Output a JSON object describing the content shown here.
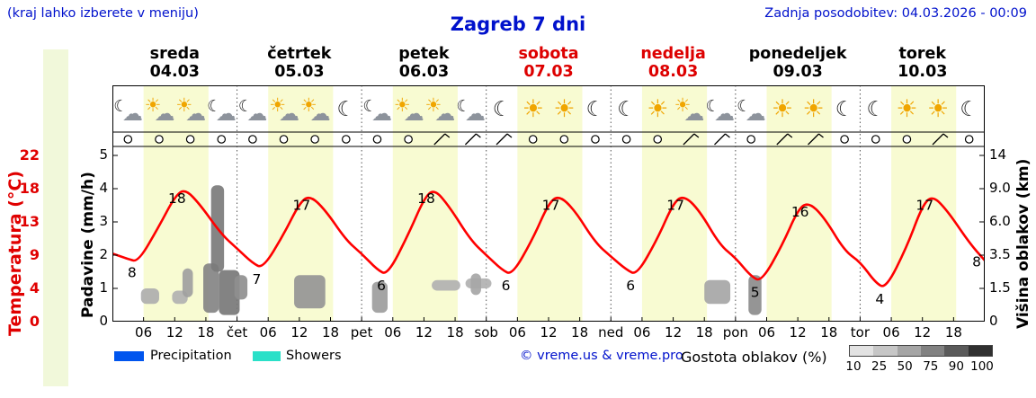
{
  "header": {
    "hint": "(kraj lahko izberete v meniju)",
    "title": "Zagreb 7 dni",
    "last_update": "Zadnja posodobitev: 04.03.2026 - 00:09"
  },
  "theme": {
    "day_band": "#f8fbd2",
    "temp_color": "#ff0000",
    "sun": "#f0a500",
    "moon": "#222222",
    "cloud": "#8d939c",
    "accent_blue": "#0011cc"
  },
  "axes": {
    "temp_label": "Temperatura (°C)",
    "temp_ticks": [
      "22",
      "18",
      "13",
      "9",
      "4",
      "0"
    ],
    "precip_label": "Padavine (mm/h)",
    "precip_ticks": [
      "5",
      "4",
      "3",
      "2",
      "1",
      "0"
    ],
    "cloud_label": "Višina oblakov (km)",
    "cloud_ticks": [
      "14",
      "9.0",
      "6.0",
      "3.5",
      "1.5",
      "0"
    ],
    "hour_ticks": [
      "06",
      "12",
      "18"
    ],
    "day_abbrs": [
      "čet",
      "pet",
      "sob",
      "ned",
      "pon",
      "tor"
    ]
  },
  "days": [
    {
      "name": "sreda",
      "date": "04.03",
      "color": "#000000",
      "icons": [
        "moon-cloud",
        "sun-cloud",
        "sun-cloud",
        "moon-cloud"
      ]
    },
    {
      "name": "četrtek",
      "date": "05.03",
      "color": "#000000",
      "icons": [
        "moon-cloud",
        "sun-cloud",
        "sun-cloud",
        "moon"
      ]
    },
    {
      "name": "petek",
      "date": "06.03",
      "color": "#000000",
      "icons": [
        "moon-cloud",
        "sun-cloud",
        "sun-cloud",
        "moon-cloud"
      ]
    },
    {
      "name": "sobota",
      "date": "07.03",
      "color": "#dd0000",
      "icons": [
        "moon",
        "sun",
        "sun",
        "moon"
      ]
    },
    {
      "name": "nedelja",
      "date": "08.03",
      "color": "#dd0000",
      "icons": [
        "moon",
        "sun",
        "sun-cloud",
        "moon-cloud"
      ]
    },
    {
      "name": "ponedeljek",
      "date": "09.03",
      "color": "#000000",
      "icons": [
        "moon-cloud",
        "sun",
        "sun",
        "moon"
      ]
    },
    {
      "name": "torek",
      "date": "10.03",
      "color": "#000000",
      "icons": [
        "moon",
        "sun",
        "sun",
        "moon"
      ]
    }
  ],
  "legend": {
    "precipitation": {
      "label": "Precipitation",
      "color": "#0055ee"
    },
    "showers": {
      "label": "Showers",
      "color": "#2ae0c8"
    },
    "copyright": "© vreme.us & vreme.pro",
    "cloud_density_label": "Gostota oblakov (%)",
    "cloud_density_ticks": [
      "10",
      "25",
      "50",
      "75",
      "90",
      "100"
    ],
    "density_colors": [
      "#e2e2e2",
      "#c6c6c6",
      "#a5a5a5",
      "#818181",
      "#5a5a5a",
      "#303030"
    ]
  },
  "chart_data": {
    "type": "line",
    "title": "Zagreb 7 dni",
    "x_unit": "hour",
    "x_range": [
      0,
      168
    ],
    "temp_axis_values": [
      0,
      4,
      9,
      13,
      18,
      22
    ],
    "cloud_axis_values": [
      0,
      1.5,
      3.5,
      6,
      9,
      14
    ],
    "temperature": {
      "unit": "°C",
      "hours": [
        0,
        3,
        5,
        9,
        12,
        14,
        17,
        21,
        24,
        27,
        29,
        33,
        36,
        38,
        41,
        45,
        48,
        51,
        53,
        57,
        60,
        62,
        65,
        69,
        72,
        75,
        77,
        81,
        84,
        86,
        89,
        93,
        96,
        99,
        101,
        105,
        108,
        110,
        113,
        117,
        120,
        123,
        125,
        129,
        132,
        134,
        137,
        141,
        144,
        147,
        149,
        153,
        156,
        158,
        161,
        165,
        168
      ],
      "values": [
        9.2,
        8.4,
        8.0,
        12.5,
        16.8,
        18,
        15.5,
        11.5,
        9.8,
        7.8,
        7.0,
        11.5,
        15.8,
        17,
        14.8,
        10.8,
        9.2,
        6.8,
        6.0,
        11.5,
        16.5,
        18,
        15.2,
        10.8,
        9.0,
        6.8,
        6.0,
        11.0,
        15.8,
        17,
        14.8,
        10.5,
        8.8,
        6.8,
        6.0,
        11.0,
        15.8,
        17,
        14.8,
        10.2,
        8.6,
        5.8,
        5.0,
        10.2,
        14.8,
        16,
        13.8,
        9.5,
        8.0,
        4.8,
        4.0,
        10.0,
        15.5,
        17,
        14.5,
        10.5,
        8.2
      ]
    },
    "daily_max_c": [
      18,
      17,
      18,
      17,
      17,
      16,
      17
    ],
    "daily_min_c": [
      8,
      7,
      6,
      6,
      6,
      5,
      4
    ],
    "temp_labels": [
      {
        "hour": 5,
        "value": 8,
        "side": "min"
      },
      {
        "hour": 14,
        "value": 18,
        "side": "max"
      },
      {
        "hour": 29,
        "value": 7,
        "side": "min"
      },
      {
        "hour": 38,
        "value": 17,
        "side": "max"
      },
      {
        "hour": 53,
        "value": 6,
        "side": "min"
      },
      {
        "hour": 62,
        "value": 18,
        "side": "max"
      },
      {
        "hour": 77,
        "value": 6,
        "side": "min"
      },
      {
        "hour": 86,
        "value": 17,
        "side": "max"
      },
      {
        "hour": 101,
        "value": 6,
        "side": "min"
      },
      {
        "hour": 110,
        "value": 17,
        "side": "max"
      },
      {
        "hour": 125,
        "value": 5,
        "side": "min"
      },
      {
        "hour": 134,
        "value": 16,
        "side": "max"
      },
      {
        "hour": 149,
        "value": 4,
        "side": "min"
      },
      {
        "hour": 158,
        "value": 17,
        "side": "max"
      },
      {
        "hour": 168,
        "value": 8,
        "side": "end"
      }
    ],
    "clouds": [
      {
        "from_hour": 5.5,
        "to_hour": 9,
        "km_low": 0.8,
        "km_high": 1.5,
        "density": 30
      },
      {
        "from_hour": 11.5,
        "to_hour": 14.5,
        "km_low": 0.8,
        "km_high": 1.4,
        "density": 28
      },
      {
        "from_hour": 13.5,
        "to_hour": 15.5,
        "km_low": 1.1,
        "km_high": 2.7,
        "density": 38
      },
      {
        "from_hour": 17.5,
        "to_hour": 20.5,
        "km_low": 0.4,
        "km_high": 3.0,
        "density": 55
      },
      {
        "from_hour": 19,
        "to_hour": 21.5,
        "km_low": 2.5,
        "km_high": 9.5,
        "density": 60
      },
      {
        "from_hour": 20.5,
        "to_hour": 24.5,
        "km_low": 0.3,
        "km_high": 2.6,
        "density": 62
      },
      {
        "from_hour": 23.5,
        "to_hour": 26,
        "km_low": 1.0,
        "km_high": 2.3,
        "density": 48
      },
      {
        "from_hour": 35,
        "to_hour": 41,
        "km_low": 0.6,
        "km_high": 2.3,
        "density": 45
      },
      {
        "from_hour": 50,
        "to_hour": 53,
        "km_low": 0.4,
        "km_high": 1.9,
        "density": 40
      },
      {
        "from_hour": 61.5,
        "to_hour": 67,
        "km_low": 1.4,
        "km_high": 2.0,
        "density": 28
      },
      {
        "from_hour": 68,
        "to_hour": 73,
        "km_low": 1.5,
        "km_high": 2.1,
        "density": 28
      },
      {
        "from_hour": 69,
        "to_hour": 71,
        "km_low": 1.2,
        "km_high": 2.4,
        "density": 35
      },
      {
        "from_hour": 114,
        "to_hour": 119,
        "km_low": 0.8,
        "km_high": 2.0,
        "density": 35
      },
      {
        "from_hour": 122.5,
        "to_hour": 125,
        "km_low": 0.3,
        "km_high": 2.3,
        "density": 50
      }
    ],
    "wind": [
      "calm",
      "calm",
      "calm",
      "calm",
      "calm",
      "calm",
      "calm",
      "calm",
      "calm",
      "calm",
      "barb",
      "barb",
      "barb",
      "calm",
      "calm",
      "calm",
      "calm",
      "calm",
      "barb",
      "barb",
      "calm",
      "barb",
      "barb",
      "calm",
      "calm",
      "calm",
      "barb",
      "calm"
    ]
  }
}
